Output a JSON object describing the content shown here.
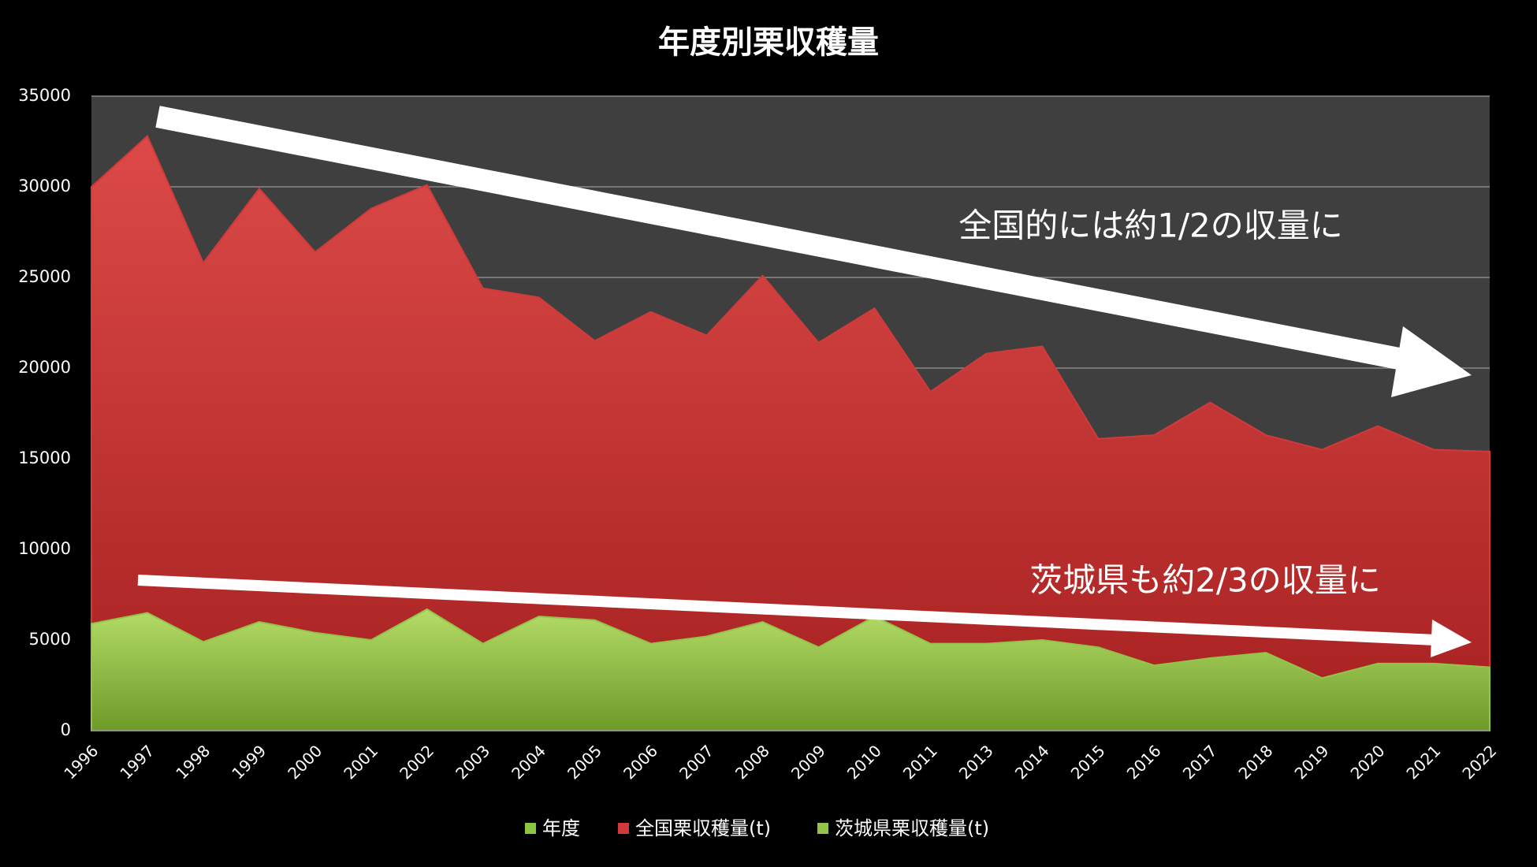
{
  "chart_data": {
    "type": "area",
    "title": "年度別栗収穫量",
    "categories": [
      "1996",
      "1997",
      "1998",
      "1999",
      "2000",
      "2001",
      "2002",
      "2003",
      "2004",
      "2005",
      "2006",
      "2007",
      "2008",
      "2009",
      "2010",
      "2011",
      "2013",
      "2014",
      "2015",
      "2016",
      "2017",
      "2018",
      "2019",
      "2020",
      "2021",
      "2022"
    ],
    "series": [
      {
        "name": "年度",
        "color": "#8cc63f"
      },
      {
        "name": "全国栗収穫量(t)",
        "color": "#d23a3a",
        "values": [
          30000,
          32800,
          25800,
          29900,
          26400,
          28800,
          30100,
          24400,
          23900,
          21500,
          23100,
          21800,
          25100,
          21400,
          23300,
          18700,
          20800,
          21200,
          16100,
          16300,
          18100,
          16300,
          15500,
          16800,
          15500,
          15400
        ]
      },
      {
        "name": "茨城県栗収穫量(t)",
        "color": "#92c447",
        "values": [
          5900,
          6500,
          4900,
          6000,
          5400,
          5000,
          6700,
          4800,
          6300,
          6100,
          4800,
          5200,
          6000,
          4600,
          6300,
          4800,
          4800,
          5000,
          4600,
          3600,
          4000,
          4300,
          2900,
          3700,
          3700,
          3500
        ]
      }
    ],
    "ylim": [
      0,
      35000
    ],
    "yticks": [
      0,
      5000,
      10000,
      15000,
      20000,
      25000,
      30000,
      35000
    ],
    "grid": true,
    "legend": "bottom",
    "annotations": [
      "全国的には約1/2の収量に",
      "茨城県も約2/3の収量に"
    ]
  }
}
